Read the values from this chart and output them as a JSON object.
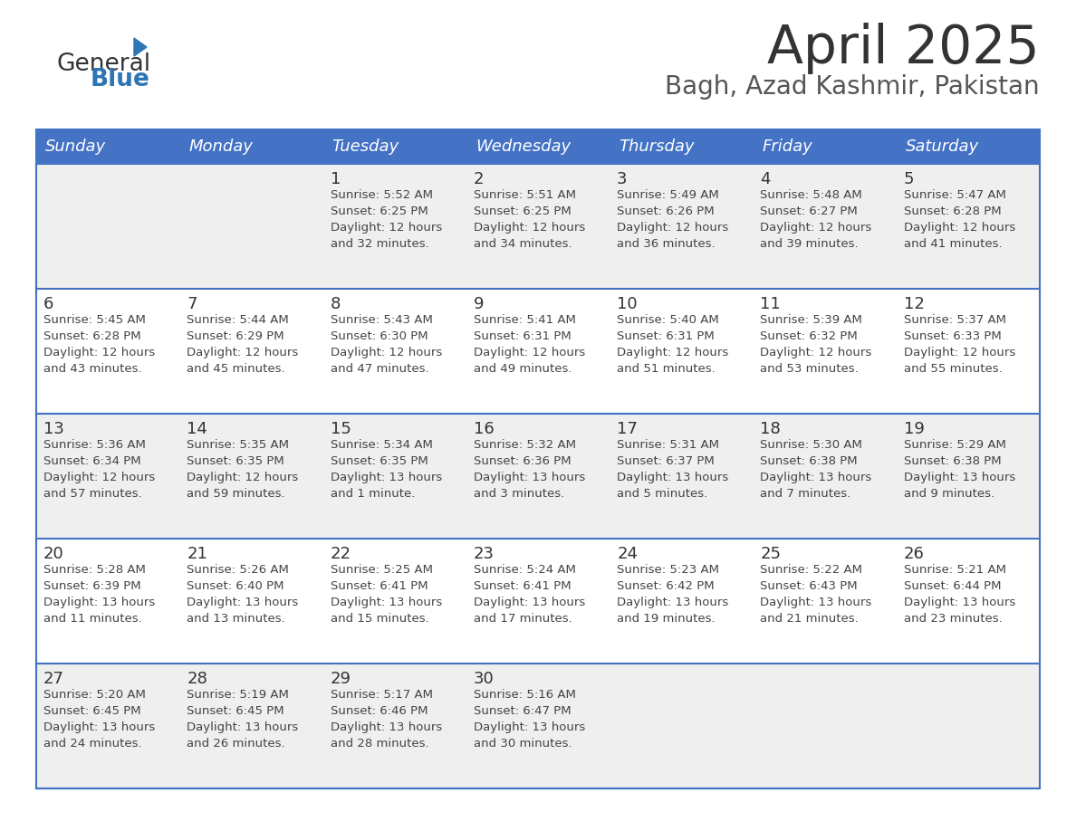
{
  "title": "April 2025",
  "subtitle": "Bagh, Azad Kashmir, Pakistan",
  "days_of_week": [
    "Sunday",
    "Monday",
    "Tuesday",
    "Wednesday",
    "Thursday",
    "Friday",
    "Saturday"
  ],
  "header_bg": "#4472C4",
  "header_text_color": "#FFFFFF",
  "border_color": "#4472C4",
  "calendar_data": [
    {
      "day": 1,
      "col": 2,
      "row": 0,
      "sunrise": "5:52 AM",
      "sunset": "6:25 PM",
      "daylight_h": "12 hours",
      "daylight_m": "32 minutes."
    },
    {
      "day": 2,
      "col": 3,
      "row": 0,
      "sunrise": "5:51 AM",
      "sunset": "6:25 PM",
      "daylight_h": "12 hours",
      "daylight_m": "34 minutes."
    },
    {
      "day": 3,
      "col": 4,
      "row": 0,
      "sunrise": "5:49 AM",
      "sunset": "6:26 PM",
      "daylight_h": "12 hours",
      "daylight_m": "36 minutes."
    },
    {
      "day": 4,
      "col": 5,
      "row": 0,
      "sunrise": "5:48 AM",
      "sunset": "6:27 PM",
      "daylight_h": "12 hours",
      "daylight_m": "39 minutes."
    },
    {
      "day": 5,
      "col": 6,
      "row": 0,
      "sunrise": "5:47 AM",
      "sunset": "6:28 PM",
      "daylight_h": "12 hours",
      "daylight_m": "41 minutes."
    },
    {
      "day": 6,
      "col": 0,
      "row": 1,
      "sunrise": "5:45 AM",
      "sunset": "6:28 PM",
      "daylight_h": "12 hours",
      "daylight_m": "43 minutes."
    },
    {
      "day": 7,
      "col": 1,
      "row": 1,
      "sunrise": "5:44 AM",
      "sunset": "6:29 PM",
      "daylight_h": "12 hours",
      "daylight_m": "45 minutes."
    },
    {
      "day": 8,
      "col": 2,
      "row": 1,
      "sunrise": "5:43 AM",
      "sunset": "6:30 PM",
      "daylight_h": "12 hours",
      "daylight_m": "47 minutes."
    },
    {
      "day": 9,
      "col": 3,
      "row": 1,
      "sunrise": "5:41 AM",
      "sunset": "6:31 PM",
      "daylight_h": "12 hours",
      "daylight_m": "49 minutes."
    },
    {
      "day": 10,
      "col": 4,
      "row": 1,
      "sunrise": "5:40 AM",
      "sunset": "6:31 PM",
      "daylight_h": "12 hours",
      "daylight_m": "51 minutes."
    },
    {
      "day": 11,
      "col": 5,
      "row": 1,
      "sunrise": "5:39 AM",
      "sunset": "6:32 PM",
      "daylight_h": "12 hours",
      "daylight_m": "53 minutes."
    },
    {
      "day": 12,
      "col": 6,
      "row": 1,
      "sunrise": "5:37 AM",
      "sunset": "6:33 PM",
      "daylight_h": "12 hours",
      "daylight_m": "55 minutes."
    },
    {
      "day": 13,
      "col": 0,
      "row": 2,
      "sunrise": "5:36 AM",
      "sunset": "6:34 PM",
      "daylight_h": "12 hours",
      "daylight_m": "57 minutes."
    },
    {
      "day": 14,
      "col": 1,
      "row": 2,
      "sunrise": "5:35 AM",
      "sunset": "6:35 PM",
      "daylight_h": "12 hours",
      "daylight_m": "59 minutes."
    },
    {
      "day": 15,
      "col": 2,
      "row": 2,
      "sunrise": "5:34 AM",
      "sunset": "6:35 PM",
      "daylight_h": "13 hours",
      "daylight_m": "1 minute."
    },
    {
      "day": 16,
      "col": 3,
      "row": 2,
      "sunrise": "5:32 AM",
      "sunset": "6:36 PM",
      "daylight_h": "13 hours",
      "daylight_m": "3 minutes."
    },
    {
      "day": 17,
      "col": 4,
      "row": 2,
      "sunrise": "5:31 AM",
      "sunset": "6:37 PM",
      "daylight_h": "13 hours",
      "daylight_m": "5 minutes."
    },
    {
      "day": 18,
      "col": 5,
      "row": 2,
      "sunrise": "5:30 AM",
      "sunset": "6:38 PM",
      "daylight_h": "13 hours",
      "daylight_m": "7 minutes."
    },
    {
      "day": 19,
      "col": 6,
      "row": 2,
      "sunrise": "5:29 AM",
      "sunset": "6:38 PM",
      "daylight_h": "13 hours",
      "daylight_m": "9 minutes."
    },
    {
      "day": 20,
      "col": 0,
      "row": 3,
      "sunrise": "5:28 AM",
      "sunset": "6:39 PM",
      "daylight_h": "13 hours",
      "daylight_m": "11 minutes."
    },
    {
      "day": 21,
      "col": 1,
      "row": 3,
      "sunrise": "5:26 AM",
      "sunset": "6:40 PM",
      "daylight_h": "13 hours",
      "daylight_m": "13 minutes."
    },
    {
      "day": 22,
      "col": 2,
      "row": 3,
      "sunrise": "5:25 AM",
      "sunset": "6:41 PM",
      "daylight_h": "13 hours",
      "daylight_m": "15 minutes."
    },
    {
      "day": 23,
      "col": 3,
      "row": 3,
      "sunrise": "5:24 AM",
      "sunset": "6:41 PM",
      "daylight_h": "13 hours",
      "daylight_m": "17 minutes."
    },
    {
      "day": 24,
      "col": 4,
      "row": 3,
      "sunrise": "5:23 AM",
      "sunset": "6:42 PM",
      "daylight_h": "13 hours",
      "daylight_m": "19 minutes."
    },
    {
      "day": 25,
      "col": 5,
      "row": 3,
      "sunrise": "5:22 AM",
      "sunset": "6:43 PM",
      "daylight_h": "13 hours",
      "daylight_m": "21 minutes."
    },
    {
      "day": 26,
      "col": 6,
      "row": 3,
      "sunrise": "5:21 AM",
      "sunset": "6:44 PM",
      "daylight_h": "13 hours",
      "daylight_m": "23 minutes."
    },
    {
      "day": 27,
      "col": 0,
      "row": 4,
      "sunrise": "5:20 AM",
      "sunset": "6:45 PM",
      "daylight_h": "13 hours",
      "daylight_m": "24 minutes."
    },
    {
      "day": 28,
      "col": 1,
      "row": 4,
      "sunrise": "5:19 AM",
      "sunset": "6:45 PM",
      "daylight_h": "13 hours",
      "daylight_m": "26 minutes."
    },
    {
      "day": 29,
      "col": 2,
      "row": 4,
      "sunrise": "5:17 AM",
      "sunset": "6:46 PM",
      "daylight_h": "13 hours",
      "daylight_m": "28 minutes."
    },
    {
      "day": 30,
      "col": 3,
      "row": 4,
      "sunrise": "5:16 AM",
      "sunset": "6:47 PM",
      "daylight_h": "13 hours",
      "daylight_m": "30 minutes."
    }
  ]
}
